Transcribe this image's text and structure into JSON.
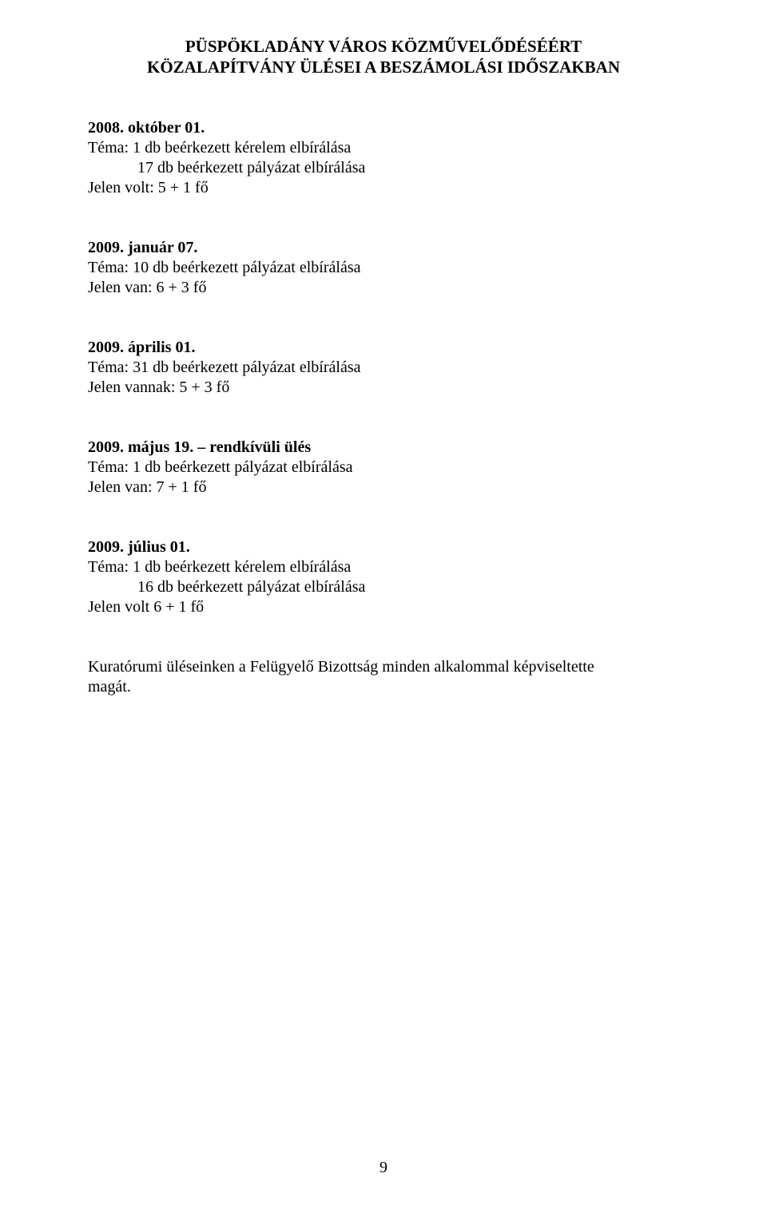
{
  "title": {
    "line1": "PÜSPÖKLADÁNY VÁROS KÖZMŰVELŐDÉSÉÉRT",
    "line2": "KÖZALAPÍTVÁNY ÜLÉSEI A BESZÁMOLÁSI IDŐSZAKBAN"
  },
  "sections": [
    {
      "date": "2008. október 01.",
      "lines": [
        "Téma: 1 db beérkezett kérelem elbírálása",
        "17 db beérkezett pályázat elbírálása",
        "Jelen volt:  5 + 1 fő"
      ],
      "indent_indices": [
        1
      ]
    },
    {
      "date": "2009. január 07.",
      "lines": [
        "Téma:  10 db beérkezett pályázat elbírálása",
        "Jelen van:  6 + 3  fő"
      ],
      "indent_indices": []
    },
    {
      "date": "2009. április  01.",
      "lines": [
        "Téma:  31 db beérkezett pályázat elbírálása",
        "Jelen vannak:  5 + 3 fő"
      ],
      "indent_indices": []
    },
    {
      "date": "2009. május 19.  – rendkívüli ülés",
      "date_bold_part": "2009. május 19.  – rendkívüli ülés",
      "lines": [
        "Téma:  1 db beérkezett pályázat elbírálása",
        "Jelen van:  7 + 1  fő"
      ],
      "indent_indices": []
    },
    {
      "date": "2009. július 01.",
      "lines": [
        "Téma: 1 db beérkezett kérelem elbírálása",
        "16 db beérkezett pályázat elbírálása",
        "Jelen volt 6 + 1 fő"
      ],
      "indent_indices": [
        1
      ]
    }
  ],
  "footer": {
    "line1": "Kuratórumi üléseinken a Felügyelő Bizottság minden alkalommal képviseltette",
    "line2": "magát."
  },
  "page_number": "9",
  "colors": {
    "text": "#000000",
    "background": "#ffffff"
  },
  "typography": {
    "body_fontsize": 20,
    "title_fontsize": 21,
    "font_family": "Times New Roman"
  }
}
